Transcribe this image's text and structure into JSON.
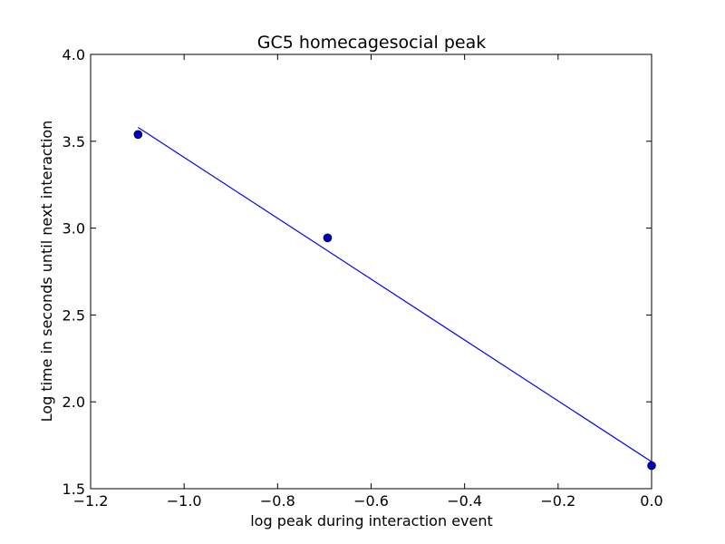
{
  "chart_data": {
    "type": "scatter",
    "title": "GC5 homecagesocial peak",
    "xlabel": "log peak during interaction event",
    "ylabel": "Log time in seconds until next interaction",
    "xlim": [
      -1.2,
      0.0
    ],
    "ylim": [
      1.5,
      4.0
    ],
    "x_ticks": [
      -1.2,
      -1.0,
      -0.8,
      -0.6,
      -0.4,
      -0.2,
      0.0
    ],
    "y_ticks": [
      1.5,
      2.0,
      2.5,
      3.0,
      3.5,
      4.0
    ],
    "x_tick_labels": [
      "−1.2",
      "−1.0",
      "−0.8",
      "−0.6",
      "−0.4",
      "−0.2",
      "0.0"
    ],
    "y_tick_labels": [
      "1.5",
      "2.0",
      "2.5",
      "3.0",
      "3.5",
      "4.0"
    ],
    "grid": false,
    "series": [
      {
        "kind": "points",
        "color": "#0000bf",
        "points": [
          {
            "x": -1.0986,
            "y": 3.539
          },
          {
            "x": -0.6931,
            "y": 2.944
          },
          {
            "x": 0.0,
            "y": 1.633
          }
        ]
      },
      {
        "kind": "fit-line",
        "color": "#0000ff",
        "points": [
          {
            "x": -1.0986,
            "y": 3.58
          },
          {
            "x": 0.0,
            "y": 1.655
          }
        ]
      }
    ]
  }
}
